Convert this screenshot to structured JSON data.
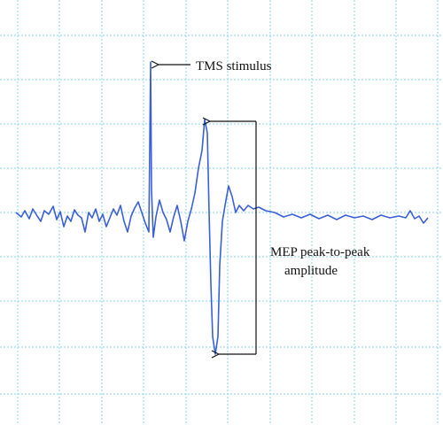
{
  "annotations": {
    "stimulus": "TMS stimulus",
    "mep_line1": "MEP peak-to-peak",
    "mep_line2": "amplitude"
  }
}
